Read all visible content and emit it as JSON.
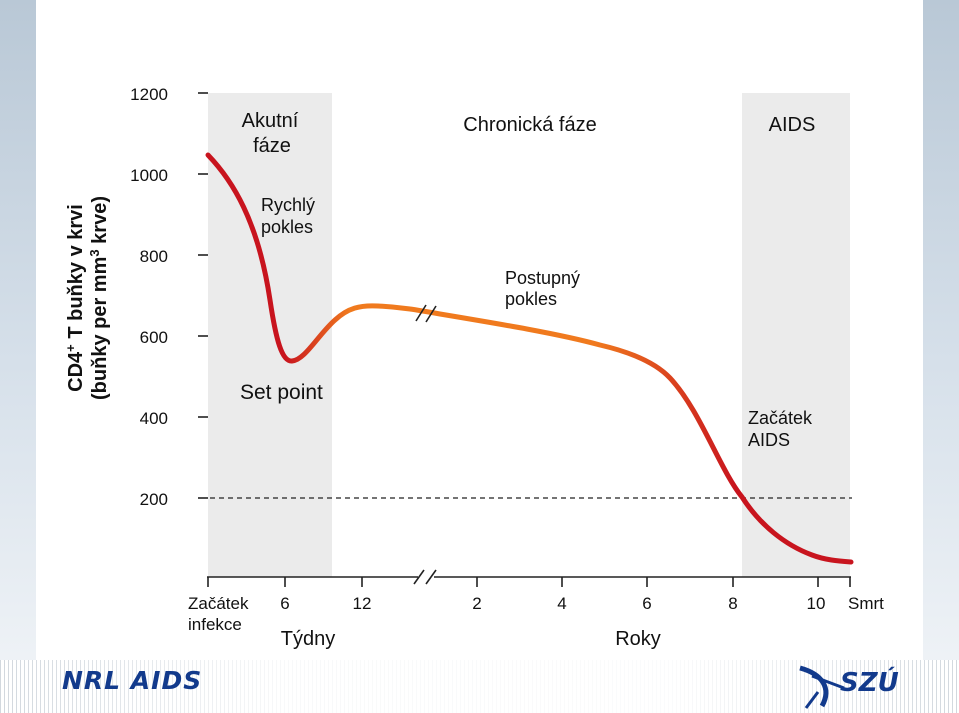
{
  "chart_data": {
    "type": "line",
    "ylabel_line1": "CD4+ T buňky v krvi",
    "ylabel_line1_main": "CD4",
    "ylabel_line1_sup": "+",
    "ylabel_line1_rest": " T buňky v krvi",
    "ylabel_line2_main": "(buňky per mm",
    "ylabel_line2_sup": "3",
    "ylabel_line2_rest": " krve)",
    "y_ticks": [
      1200,
      1000,
      800,
      600,
      400,
      200
    ],
    "ylim": [
      0,
      1200
    ],
    "x_ticks": [
      {
        "label": "Začátek",
        "label2": "infekce",
        "group": "start"
      },
      {
        "label": "6",
        "group": "weeks"
      },
      {
        "label": "12",
        "group": "weeks"
      },
      {
        "label": "2",
        "group": "years"
      },
      {
        "label": "4",
        "group": "years"
      },
      {
        "label": "6",
        "group": "years"
      },
      {
        "label": "8",
        "group": "years"
      },
      {
        "label": "10",
        "group": "years"
      },
      {
        "label": "Smrt",
        "group": "end"
      }
    ],
    "x_unit_weeks": "Týdny",
    "x_unit_years": "Roky",
    "phases": [
      {
        "label": "Akutní\nfáze",
        "line1": "Akutní",
        "line2": "fáze",
        "shaded": true
      },
      {
        "label": "Chronická fáze",
        "shaded": false
      },
      {
        "label": "AIDS",
        "shaded": true
      }
    ],
    "annotations": {
      "rapid_drop": [
        "Rychlý",
        "pokles"
      ],
      "set_point": "Set point",
      "gradual_decline": [
        "Postupný",
        "pokles"
      ],
      "aids_onset": [
        "Začátek",
        "AIDS"
      ]
    },
    "threshold": {
      "value": 200,
      "style": "dashed"
    },
    "series": [
      {
        "color_start": "#c8141e",
        "color_mid": "#f07a1e",
        "color_end": "#c8141e",
        "points": [
          {
            "x": "Začátek infekce",
            "y": 1050
          },
          {
            "x": "6 Týdny",
            "y": 530
          },
          {
            "x": "12 Týdny",
            "y": 670
          },
          {
            "x": "2 Roky",
            "y": 640
          },
          {
            "x": "4 Roky",
            "y": 590
          },
          {
            "x": "6 Roky",
            "y": 520
          },
          {
            "x": "8 Roky",
            "y": 220
          },
          {
            "x": "10 Roky",
            "y": 90
          }
        ]
      }
    ]
  },
  "logos": {
    "left": "NRL AIDS",
    "right": "SZÚ"
  }
}
